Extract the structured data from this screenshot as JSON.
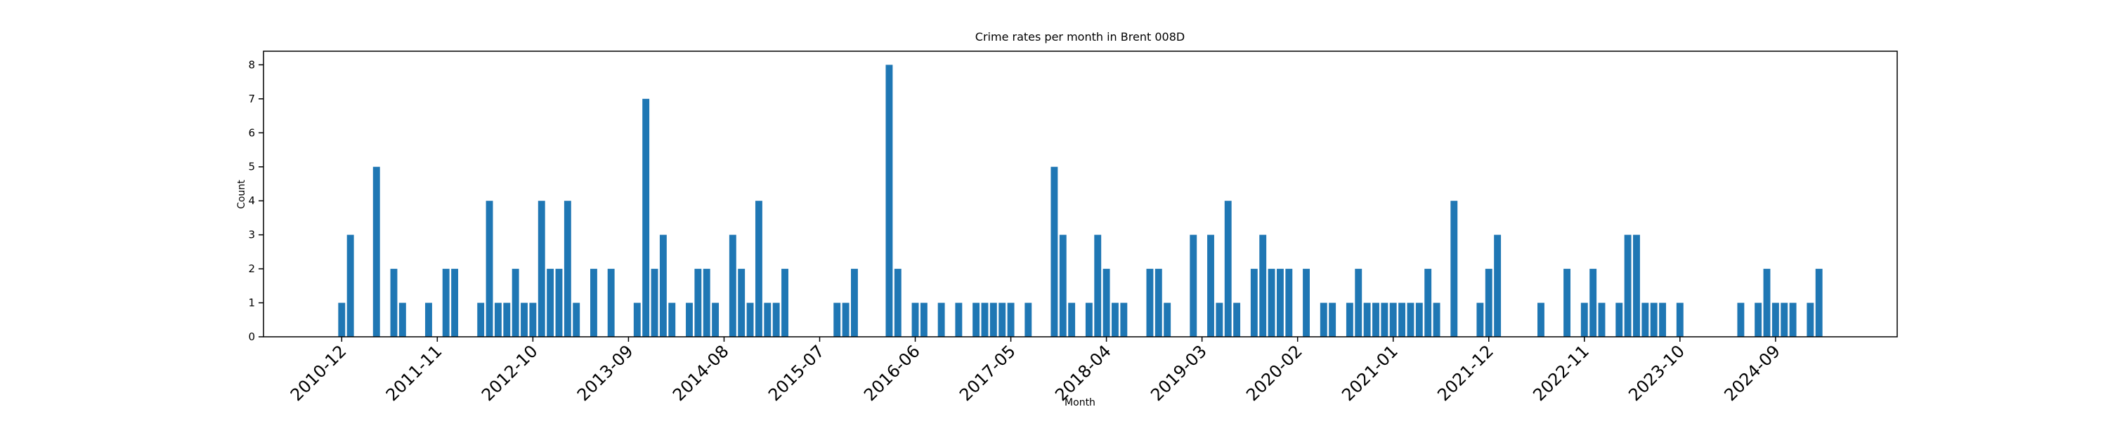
{
  "chart_data": {
    "type": "bar",
    "title": "Crime rates per month in Brent 008D",
    "xlabel": "Month",
    "ylabel": "Count",
    "color": "#1f77b4",
    "x": [
      "2010-12",
      "2011-01",
      "2011-04",
      "2011-06",
      "2011-07",
      "2011-10",
      "2011-12",
      "2012-01",
      "2012-04",
      "2012-05",
      "2012-06",
      "2012-07",
      "2012-08",
      "2012-09",
      "2012-10",
      "2012-11",
      "2012-12",
      "2013-01",
      "2013-02",
      "2013-03",
      "2013-05",
      "2013-07",
      "2013-10",
      "2013-11",
      "2013-12",
      "2014-01",
      "2014-02",
      "2014-04",
      "2014-05",
      "2014-06",
      "2014-07",
      "2014-09",
      "2014-10",
      "2014-11",
      "2014-12",
      "2015-01",
      "2015-02",
      "2015-03",
      "2015-09",
      "2015-10",
      "2015-11",
      "2016-03",
      "2016-04",
      "2016-06",
      "2016-07",
      "2016-09",
      "2016-11",
      "2017-01",
      "2017-02",
      "2017-03",
      "2017-04",
      "2017-05",
      "2017-07",
      "2017-10",
      "2017-11",
      "2017-12",
      "2018-02",
      "2018-03",
      "2018-04",
      "2018-05",
      "2018-06",
      "2018-09",
      "2018-10",
      "2018-11",
      "2019-02",
      "2019-04",
      "2019-05",
      "2019-06",
      "2019-07",
      "2019-09",
      "2019-10",
      "2019-11",
      "2019-12",
      "2020-01",
      "2020-03",
      "2020-05",
      "2020-06",
      "2020-08",
      "2020-09",
      "2020-10",
      "2020-11",
      "2020-12",
      "2021-01",
      "2021-02",
      "2021-03",
      "2021-04",
      "2021-05",
      "2021-06",
      "2021-08",
      "2021-11",
      "2021-12",
      "2022-01",
      "2022-06",
      "2022-09",
      "2022-11",
      "2022-12",
      "2023-01",
      "2023-03",
      "2023-04",
      "2023-05",
      "2023-06",
      "2023-07",
      "2023-08",
      "2023-10",
      "2024-05",
      "2024-07",
      "2024-08",
      "2024-09",
      "2024-10",
      "2024-11",
      "2025-01",
      "2025-02"
    ],
    "values": [
      1,
      3,
      5,
      2,
      1,
      1,
      2,
      2,
      1,
      4,
      1,
      1,
      2,
      1,
      1,
      4,
      2,
      2,
      4,
      1,
      2,
      2,
      1,
      7,
      2,
      3,
      1,
      1,
      2,
      2,
      1,
      3,
      2,
      1,
      4,
      1,
      1,
      2,
      1,
      1,
      2,
      8,
      2,
      1,
      1,
      1,
      1,
      1,
      1,
      1,
      1,
      1,
      1,
      5,
      3,
      1,
      1,
      3,
      2,
      1,
      1,
      2,
      2,
      1,
      3,
      3,
      1,
      4,
      1,
      2,
      3,
      2,
      2,
      2,
      2,
      1,
      1,
      1,
      2,
      1,
      1,
      1,
      1,
      1,
      1,
      1,
      2,
      1,
      4,
      1,
      2,
      3,
      1,
      2,
      1,
      2,
      1,
      1,
      3,
      3,
      1,
      1,
      1,
      1,
      1,
      1,
      2,
      1,
      1,
      1,
      1,
      2
    ],
    "xlim": [
      "2010-03",
      "2025-11"
    ],
    "xticks": [
      "2010-12",
      "2011-11",
      "2012-10",
      "2013-09",
      "2014-08",
      "2015-07",
      "2016-06",
      "2017-05",
      "2018-04",
      "2019-03",
      "2020-02",
      "2021-01",
      "2021-12",
      "2022-11",
      "2023-10",
      "2024-09"
    ],
    "ylim": [
      0,
      8.4
    ],
    "yticks": [
      0,
      1,
      2,
      3,
      4,
      5,
      6,
      7,
      8
    ]
  }
}
